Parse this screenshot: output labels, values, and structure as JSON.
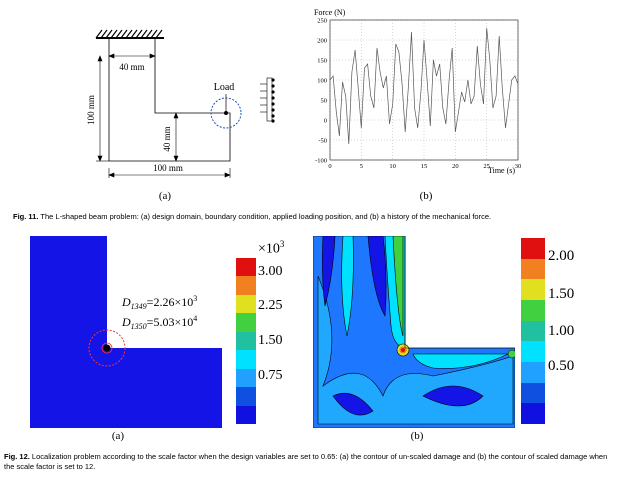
{
  "fig11": {
    "panel_a": {
      "dim_top": "40 mm",
      "dim_left": "100 mm",
      "dim_inner": "40 mm",
      "dim_bottom": "100 mm",
      "load_label": "Load",
      "sublabel": "(a)"
    },
    "panel_b": {
      "sublabel": "(b)"
    },
    "caption_num": "Fig. 11.",
    "caption_text": " The L-shaped beam problem: (a) design domain, boundary condition, applied loading position, and (b) a history of the mechanical force."
  },
  "chart_data": {
    "type": "line",
    "ylabel": "Force (N)",
    "xlabel": "Time (s)",
    "xlim": [
      0,
      30
    ],
    "ylim": [
      -100,
      250
    ],
    "xticks": [
      "0",
      "5",
      "10",
      "15",
      "20",
      "25",
      "30"
    ],
    "yticks": [
      "250",
      "200",
      "150",
      "100",
      "50",
      "0",
      "-50",
      "-100"
    ],
    "series": [
      {
        "x": [
          0,
          0.5,
          1,
          1.5,
          2,
          2.5,
          3,
          3.5,
          4,
          4.5,
          5,
          5.5,
          6,
          6.5,
          7,
          7.5,
          8,
          8.5,
          9,
          9.5,
          10,
          10.5,
          11,
          11.5,
          12,
          12.5,
          13,
          13.5,
          14,
          14.5,
          15,
          15.5,
          16,
          16.5,
          17,
          17.5,
          18,
          18.5,
          19,
          19.5,
          20,
          20.5,
          21,
          21.5,
          22,
          22.5,
          23,
          23.5,
          24,
          24.5,
          25,
          25.5,
          26,
          26.5,
          27,
          27.5,
          28,
          28.5,
          29,
          29.5,
          30
        ],
        "y": [
          100,
          110,
          20,
          -40,
          95,
          60,
          -60,
          120,
          175,
          80,
          -20,
          130,
          140,
          60,
          30,
          180,
          120,
          80,
          110,
          -10,
          40,
          190,
          170,
          90,
          -30,
          80,
          220,
          30,
          -20,
          70,
          200,
          100,
          -15,
          150,
          110,
          140,
          30,
          -10,
          100,
          180,
          -30,
          20,
          70,
          45,
          100,
          40,
          60,
          185,
          90,
          40,
          230,
          150,
          30,
          60,
          210,
          80,
          -20,
          40,
          100,
          110,
          90
        ]
      }
    ]
  },
  "fig12": {
    "panel_a": {
      "exp_label": "×10",
      "exp_sup": "3",
      "ticks": [
        "3.00",
        "2.25",
        "1.50",
        "0.75"
      ],
      "d1_name": "D",
      "d1_sub": "1349",
      "d1_value": "=2.26×10",
      "d1_sup": "3",
      "d2_name": "D",
      "d2_sub": "1350",
      "d2_value": "=5.03×10",
      "d2_sup": "4",
      "sublabel": "(a)"
    },
    "panel_b": {
      "ticks": [
        "2.00",
        "1.50",
        "1.00",
        "0.50"
      ],
      "sublabel": "(b)"
    },
    "colorbar_colors": [
      "#e01010",
      "#f08020",
      "#e0e020",
      "#40d040",
      "#20c0a0",
      "#00e0ff",
      "#20a0ff",
      "#1050e0",
      "#1010e0"
    ],
    "caption_num": "Fig. 12.",
    "caption_text": " Localization problem according to the scale factor when the design variables are set to 0.65: (a) the contour of un-scaled damage and (b) the contour of scaled damage when the scale factor is set to 12."
  }
}
